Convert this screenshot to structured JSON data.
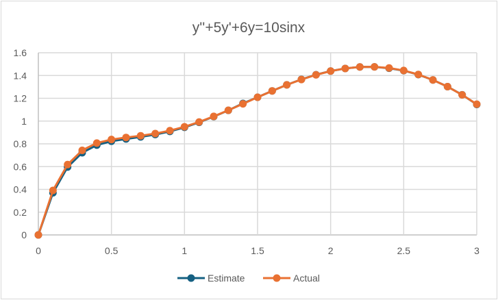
{
  "chart_data": {
    "type": "line",
    "title": "y''+5y'+6y=10sinx",
    "xlabel": "",
    "ylabel": "",
    "xlim": [
      0,
      3
    ],
    "ylim": [
      0,
      1.6
    ],
    "x_ticks": [
      "0",
      "0.5",
      "1",
      "1.5",
      "2",
      "2.5",
      "3"
    ],
    "y_ticks": [
      "0",
      "0.2",
      "0.4",
      "0.6",
      "0.8",
      "1",
      "1.2",
      "1.4",
      "1.6"
    ],
    "grid": true,
    "legend_position": "bottom",
    "x": [
      0,
      0.1,
      0.2,
      0.3,
      0.4,
      0.5,
      0.6,
      0.7,
      0.8,
      0.9,
      1.0,
      1.1,
      1.2,
      1.3,
      1.4,
      1.5,
      1.6,
      1.7,
      1.8,
      1.9,
      2.0,
      2.1,
      2.2,
      2.3,
      2.4,
      2.5,
      2.6,
      2.7,
      2.8,
      2.9,
      3.0
    ],
    "series": [
      {
        "name": "Estimate",
        "color": "#156082",
        "values": [
          0,
          0.37,
          0.596,
          0.722,
          0.789,
          0.823,
          0.843,
          0.861,
          0.882,
          0.909,
          0.945,
          0.989,
          1.039,
          1.094,
          1.155,
          1.209,
          1.265,
          1.318,
          1.366,
          1.407,
          1.439,
          1.462,
          1.475,
          1.476,
          1.464,
          1.443,
          1.408,
          1.361,
          1.302,
          1.231,
          1.146
        ]
      },
      {
        "name": "Actual",
        "color": "#E97132",
        "values": [
          0,
          0.391,
          0.618,
          0.743,
          0.807,
          0.838,
          0.856,
          0.871,
          0.89,
          0.916,
          0.95,
          0.992,
          1.041,
          1.095,
          1.151,
          1.209,
          1.265,
          1.318,
          1.365,
          1.406,
          1.439,
          1.462,
          1.475,
          1.476,
          1.466,
          1.444,
          1.409,
          1.361,
          1.302,
          1.23,
          1.148
        ]
      }
    ]
  }
}
